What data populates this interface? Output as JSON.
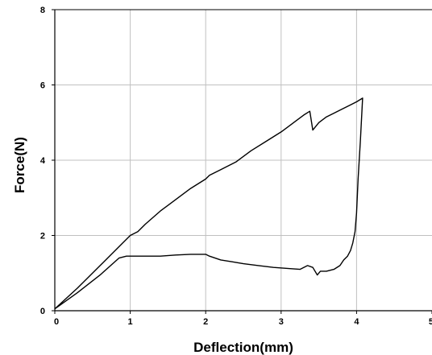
{
  "chart_data": {
    "type": "line",
    "title": "",
    "xlabel": "Deflection(mm)",
    "ylabel": "Force(N)",
    "xlim": [
      0,
      5
    ],
    "ylim": [
      0,
      8
    ],
    "xticks": [
      "0",
      "1",
      "2",
      "3",
      "4",
      "5"
    ],
    "yticks": [
      "0",
      "2",
      "4",
      "6",
      "8"
    ],
    "grid": true,
    "line_color": "#000000",
    "grid_color": "#c0c0c0",
    "series": [
      {
        "x": [
          0,
          0.3,
          0.6,
          0.9,
          1.0,
          1.1,
          1.2,
          1.4,
          1.6,
          1.8,
          2.0,
          2.05,
          2.2,
          2.4,
          2.6,
          2.8,
          3.0,
          3.1,
          3.2,
          3.3,
          3.38,
          3.42,
          3.5,
          3.6,
          3.7,
          3.8,
          3.9,
          4.0,
          4.08,
          4.05,
          4.02,
          4.0,
          3.98,
          3.95,
          3.92,
          3.88,
          3.83,
          3.78,
          3.7,
          3.6,
          3.52,
          3.48,
          3.42,
          3.35,
          3.25,
          3.1,
          2.9,
          2.7,
          2.5,
          2.35,
          2.2,
          2.05,
          2.0,
          1.8,
          1.6,
          1.4,
          1.2,
          1.0,
          0.95,
          0.85,
          0.6,
          0.3,
          0
        ],
        "y": [
          0.05,
          0.6,
          1.2,
          1.8,
          2.0,
          2.1,
          2.3,
          2.65,
          2.95,
          3.25,
          3.5,
          3.6,
          3.75,
          3.95,
          4.25,
          4.5,
          4.75,
          4.9,
          5.05,
          5.2,
          5.3,
          4.8,
          5.0,
          5.15,
          5.25,
          5.35,
          5.45,
          5.55,
          5.65,
          4.5,
          3.5,
          2.6,
          2.1,
          1.8,
          1.6,
          1.45,
          1.35,
          1.2,
          1.1,
          1.05,
          1.05,
          0.95,
          1.15,
          1.2,
          1.1,
          1.12,
          1.15,
          1.2,
          1.25,
          1.3,
          1.35,
          1.45,
          1.5,
          1.5,
          1.48,
          1.45,
          1.45,
          1.45,
          1.45,
          1.4,
          0.95,
          0.48,
          0.05
        ]
      }
    ]
  }
}
